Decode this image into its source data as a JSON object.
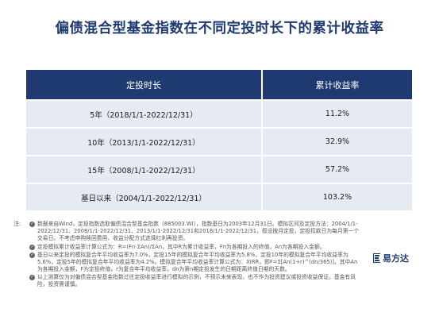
{
  "title": "偏债混合型基金指数在不同定投时长下的累计收益率",
  "table": {
    "headers": [
      "定投时长",
      "累计收益率"
    ],
    "rows": [
      {
        "period": "5年（2018/1/1-2022/12/31）",
        "return": "11.2%"
      },
      {
        "period": "10年（2013/1/1-2022/12/31）",
        "return": "32.9%"
      },
      {
        "period": "15年（2008/1/1-2022/12/31）",
        "return": "57.2%"
      },
      {
        "period": "基日以来（2004/1/1-2022/12/31）",
        "return": "103.2%"
      }
    ]
  },
  "footnotes": {
    "prefix": "注:",
    "bullet_icon": "check-circle-icon",
    "items": [
      {
        "text": "数据来自Wind，定投指数选取偏债混合型基金指数（885003.WI），指数基日为2003年12月31日。模拟区间及定投方法：2004/1/1-2022/12/31、2008/1/1-2022/12/31、2013/1/1-2022/12/31和2018/1/1-2022/12/31，假设按月定投，定投扣款日为每月第一个交易日。不考虑申购赎回费用、收益分配方式选择红利再投资。"
      },
      {
        "text": "定投模拟累计收益率计算公式为：R=(Fn-ΣAn)/ΣAn，其中R为累计收益率，Fn为各期投入的终值，An为各期投入金额。"
      },
      {
        "text": "基日以来定投的模拟复合年平均收益率为7.0%，定投15年的模拟复合年平均收益率为5.8%，定投10年的模拟复合年平均收益率为5.6%，定投5年的模拟复合年平均收益率为4.2%。模拟复合年平均收益率计算公式为：XIRR，即F=Σ[An(1+r)^(dn/365)]，其中An为各期投入金额，F为定投终值，r为复合年平均收益率，dn为第n期定投发生的日期距离终值日期的天数。"
      },
      {
        "text": "以上测算仅为对偏债混合型基金指数过往定投收益率进行模拟的示例，不预示未来表现，也不作为投资建议或投资收益保证。基金有风险，投资需谨慎。"
      }
    ]
  },
  "logo": {
    "icon": "efund-logo-icon",
    "text": "易方达"
  },
  "colors": {
    "primary": "#1f3a70",
    "table_row": "#e6eaf3",
    "note_text": "#555555"
  }
}
